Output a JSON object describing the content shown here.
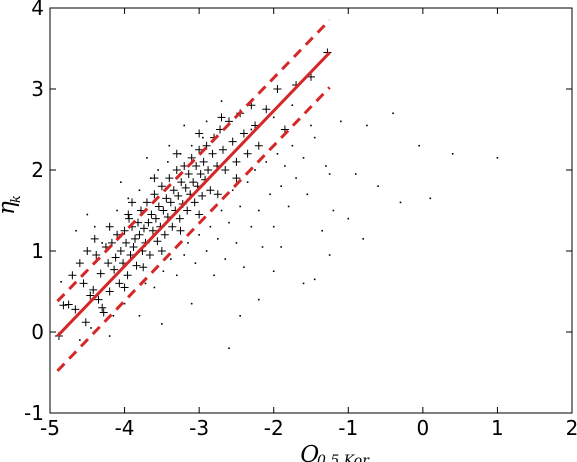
{
  "chart_data": {
    "type": "scatter",
    "title": "",
    "xlabel": "Q",
    "xlabel_sub": "0.5 Kor",
    "ylabel": "η",
    "ylabel_sub": "k",
    "xlim": [
      -5,
      2
    ],
    "ylim": [
      -1,
      4
    ],
    "xticks": [
      -5,
      -4,
      -3,
      -2,
      -1,
      0,
      1,
      2
    ],
    "yticks": [
      -1,
      0,
      1,
      2,
      3,
      4
    ],
    "xtick_labels": [
      "-5",
      "-4",
      "-3",
      "-2",
      "-1",
      "0",
      "1",
      "2"
    ],
    "ytick_labels": [
      "-1",
      "0",
      "1",
      "2",
      "3",
      "4"
    ],
    "grid": false,
    "legend": "none",
    "colors": {
      "points": "#000000",
      "fit_line": "#d62728",
      "band_lines": "#d62728"
    },
    "fit_line": {
      "x": [
        -4.9,
        -1.25
      ],
      "y": [
        -0.05,
        3.45
      ]
    },
    "upper_band": {
      "x": [
        -4.9,
        -1.25
      ],
      "y": [
        0.38,
        3.85
      ]
    },
    "lower_band": {
      "x": [
        -4.9,
        -1.25
      ],
      "y": [
        -0.48,
        3.02
      ]
    },
    "series": [
      {
        "marker": "plus",
        "values": [
          [
            -4.88,
            -0.05
          ],
          [
            -4.82,
            0.33
          ],
          [
            -4.75,
            0.34
          ],
          [
            -4.7,
            0.7
          ],
          [
            -4.66,
            0.28
          ],
          [
            -4.6,
            0.85
          ],
          [
            -4.55,
            0.6
          ],
          [
            -4.52,
            0.12
          ],
          [
            -4.5,
            1.0
          ],
          [
            -4.46,
            0.45
          ],
          [
            -4.42,
            0.52
          ],
          [
            -4.38,
            0.95
          ],
          [
            -4.35,
            0.4
          ],
          [
            -4.32,
            0.72
          ],
          [
            -4.28,
            0.24
          ],
          [
            -4.25,
            1.05
          ],
          [
            -4.22,
            0.85
          ],
          [
            -4.2,
            0.5
          ],
          [
            -4.17,
            1.1
          ],
          [
            -4.14,
            0.77
          ],
          [
            -4.12,
            0.92
          ],
          [
            -4.1,
            1.2
          ],
          [
            -4.07,
            0.6
          ],
          [
            -4.05,
            1.0
          ],
          [
            -4.02,
            0.85
          ],
          [
            -4.0,
            1.25
          ],
          [
            -3.98,
            1.1
          ],
          [
            -3.96,
            0.7
          ],
          [
            -3.94,
            1.4
          ],
          [
            -3.92,
            0.95
          ],
          [
            -3.9,
            1.3
          ],
          [
            -3.88,
            1.05
          ],
          [
            -3.86,
            1.15
          ],
          [
            -3.84,
            0.82
          ],
          [
            -3.82,
            1.35
          ],
          [
            -3.8,
            1.2
          ],
          [
            -3.78,
            1.5
          ],
          [
            -3.76,
            1.0
          ],
          [
            -3.74,
            1.28
          ],
          [
            -3.72,
            1.1
          ],
          [
            -3.7,
            1.6
          ],
          [
            -3.68,
            1.35
          ],
          [
            -3.66,
            0.95
          ],
          [
            -3.64,
            1.45
          ],
          [
            -3.62,
            1.25
          ],
          [
            -3.6,
            1.7
          ],
          [
            -3.58,
            1.4
          ],
          [
            -3.56,
            1.12
          ],
          [
            -3.54,
            1.55
          ],
          [
            -3.52,
            1.3
          ],
          [
            -3.5,
            1.8
          ],
          [
            -3.48,
            1.5
          ],
          [
            -3.46,
            1.2
          ],
          [
            -3.44,
            1.65
          ],
          [
            -3.42,
            1.42
          ],
          [
            -3.4,
            1.9
          ],
          [
            -3.38,
            1.6
          ],
          [
            -3.36,
            1.3
          ],
          [
            -3.34,
            1.75
          ],
          [
            -3.32,
            1.5
          ],
          [
            -3.3,
            2.0
          ],
          [
            -3.28,
            1.68
          ],
          [
            -3.26,
            1.4
          ],
          [
            -3.24,
            1.85
          ],
          [
            -3.22,
            1.58
          ],
          [
            -3.2,
            2.05
          ],
          [
            -3.18,
            1.78
          ],
          [
            -3.16,
            1.5
          ],
          [
            -3.14,
            1.95
          ],
          [
            -3.12,
            1.7
          ],
          [
            -3.1,
            2.15
          ],
          [
            -3.08,
            1.85
          ],
          [
            -3.06,
            1.6
          ],
          [
            -3.04,
            2.05
          ],
          [
            -3.02,
            1.8
          ],
          [
            -3.0,
            2.25
          ],
          [
            -2.98,
            1.95
          ],
          [
            -2.96,
            1.68
          ],
          [
            -2.94,
            2.1
          ],
          [
            -2.92,
            1.88
          ],
          [
            -2.9,
            2.3
          ],
          [
            -2.88,
            2.0
          ],
          [
            -2.85,
            1.75
          ],
          [
            -2.82,
            2.2
          ],
          [
            -2.8,
            2.4
          ],
          [
            -2.76,
            2.05
          ],
          [
            -2.72,
            2.5
          ],
          [
            -2.68,
            2.25
          ],
          [
            -2.65,
            2.0
          ],
          [
            -2.6,
            2.6
          ],
          [
            -2.55,
            2.35
          ],
          [
            -2.5,
            2.1
          ],
          [
            -2.45,
            2.7
          ],
          [
            -2.4,
            2.45
          ],
          [
            -2.35,
            2.2
          ],
          [
            -2.3,
            2.8
          ],
          [
            -2.25,
            2.55
          ],
          [
            -2.2,
            2.3
          ],
          [
            -2.1,
            2.75
          ],
          [
            -1.95,
            3.0
          ],
          [
            -1.85,
            2.5
          ],
          [
            -1.7,
            3.05
          ],
          [
            -1.5,
            3.15
          ],
          [
            -1.28,
            3.45
          ],
          [
            -4.3,
            0.3
          ],
          [
            -4.0,
            0.55
          ],
          [
            -3.75,
            0.8
          ],
          [
            -3.5,
            1.0
          ],
          [
            -3.25,
            1.25
          ],
          [
            -3.0,
            1.45
          ],
          [
            -2.75,
            1.7
          ],
          [
            -2.5,
            1.9
          ],
          [
            -3.9,
            1.6
          ],
          [
            -3.6,
            1.9
          ],
          [
            -3.3,
            2.2
          ],
          [
            -3.0,
            2.45
          ],
          [
            -2.7,
            2.65
          ],
          [
            -4.2,
            1.3
          ],
          [
            -4.4,
            1.15
          ],
          [
            -3.95,
            1.45
          ]
        ]
      },
      {
        "marker": "dot",
        "values": [
          [
            -4.85,
            0.62
          ],
          [
            -4.6,
            -0.1
          ],
          [
            -4.4,
            1.3
          ],
          [
            -4.3,
            1.1
          ],
          [
            -4.15,
            0.2
          ],
          [
            -4.1,
            1.5
          ],
          [
            -4.0,
            0.35
          ],
          [
            -3.95,
            1.65
          ],
          [
            -3.88,
            0.5
          ],
          [
            -3.8,
            1.75
          ],
          [
            -3.72,
            0.6
          ],
          [
            -3.65,
            1.9
          ],
          [
            -3.6,
            0.55
          ],
          [
            -3.55,
            2.0
          ],
          [
            -3.48,
            0.75
          ],
          [
            -3.42,
            2.1
          ],
          [
            -3.38,
            0.9
          ],
          [
            -3.3,
            0.7
          ],
          [
            -3.25,
            2.2
          ],
          [
            -3.2,
            0.95
          ],
          [
            -3.15,
            1.1
          ],
          [
            -3.1,
            2.3
          ],
          [
            -3.05,
            0.85
          ],
          [
            -3.0,
            1.2
          ],
          [
            -2.95,
            2.4
          ],
          [
            -2.9,
            1.0
          ],
          [
            -2.85,
            1.3
          ],
          [
            -2.8,
            0.7
          ],
          [
            -2.75,
            1.15
          ],
          [
            -2.7,
            1.5
          ],
          [
            -2.65,
            0.9
          ],
          [
            -2.6,
            1.35
          ],
          [
            -2.55,
            1.75
          ],
          [
            -2.5,
            1.1
          ],
          [
            -2.45,
            1.55
          ],
          [
            -2.4,
            0.8
          ],
          [
            -2.35,
            1.85
          ],
          [
            -2.3,
            1.3
          ],
          [
            -2.25,
            2.0
          ],
          [
            -2.2,
            1.5
          ],
          [
            -2.15,
            1.05
          ],
          [
            -2.1,
            2.1
          ],
          [
            -2.05,
            1.7
          ],
          [
            -2.0,
            1.3
          ],
          [
            -1.95,
            2.2
          ],
          [
            -1.9,
            1.8
          ],
          [
            -1.85,
            2.05
          ],
          [
            -1.8,
            1.55
          ],
          [
            -1.75,
            2.3
          ],
          [
            -1.7,
            1.9
          ],
          [
            -1.6,
            2.15
          ],
          [
            -1.55,
            1.7
          ],
          [
            -1.45,
            2.4
          ],
          [
            -1.35,
            1.25
          ],
          [
            -1.3,
            2.05
          ],
          [
            -1.2,
            1.5
          ],
          [
            -1.1,
            2.6
          ],
          [
            -1.0,
            1.4
          ],
          [
            -0.9,
            1.95
          ],
          [
            -0.75,
            2.55
          ],
          [
            -0.6,
            1.8
          ],
          [
            -0.4,
            2.7
          ],
          [
            -0.3,
            1.6
          ],
          [
            -0.05,
            2.3
          ],
          [
            0.1,
            1.65
          ],
          [
            0.4,
            2.2
          ],
          [
            1.0,
            2.15
          ],
          [
            -1.25,
            0.95
          ],
          [
            -2.45,
            0.2
          ],
          [
            -2.6,
            -0.2
          ],
          [
            -3.5,
            0.1
          ],
          [
            -3.1,
            0.35
          ],
          [
            -2.2,
            0.4
          ],
          [
            -1.9,
            1.05
          ],
          [
            -1.6,
            0.6
          ],
          [
            -2.9,
            2.6
          ],
          [
            -3.4,
            2.3
          ],
          [
            -3.7,
            2.15
          ],
          [
            -4.05,
            1.85
          ],
          [
            -4.5,
            1.45
          ],
          [
            -4.65,
            1.25
          ],
          [
            -4.45,
            0.05
          ],
          [
            -4.2,
            -0.05
          ],
          [
            -3.8,
            0.2
          ],
          [
            -2.0,
            0.75
          ],
          [
            -1.45,
            0.65
          ],
          [
            -1.25,
            1.95
          ],
          [
            -2.3,
            2.5
          ],
          [
            -2.0,
            2.65
          ],
          [
            -1.75,
            2.8
          ],
          [
            -1.5,
            2.55
          ],
          [
            -0.8,
            1.15
          ],
          [
            -3.2,
            2.55
          ],
          [
            -2.7,
            2.85
          ]
        ]
      }
    ]
  }
}
